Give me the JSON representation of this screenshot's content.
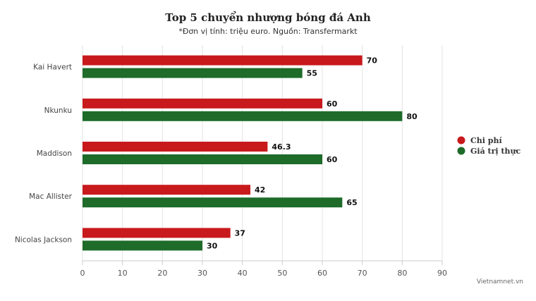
{
  "chart_data": {
    "type": "bar",
    "orientation": "horizontal",
    "title": "Top 5 chuyển nhượng bóng đá Anh",
    "subtitle": "*Đơn vị tính: triệu euro. Nguồn: Transfermarkt",
    "categories": [
      "Kai Havert",
      "Nkunku",
      "Maddison",
      "Mac Allister",
      "Nicolas Jackson"
    ],
    "series": [
      {
        "name": "Chi phí",
        "color": "#c8191c",
        "values": [
          70,
          60,
          46.3,
          42,
          37
        ]
      },
      {
        "name": "Giá trị thực",
        "color": "#1e6b2a",
        "values": [
          55,
          80,
          60,
          65,
          30
        ]
      }
    ],
    "xlim": [
      0,
      90
    ],
    "xticks": [
      0,
      10,
      20,
      30,
      40,
      50,
      60,
      70,
      80,
      90
    ],
    "grid": true,
    "legend_position": "right"
  },
  "credit": "Vietnamnet.vn"
}
